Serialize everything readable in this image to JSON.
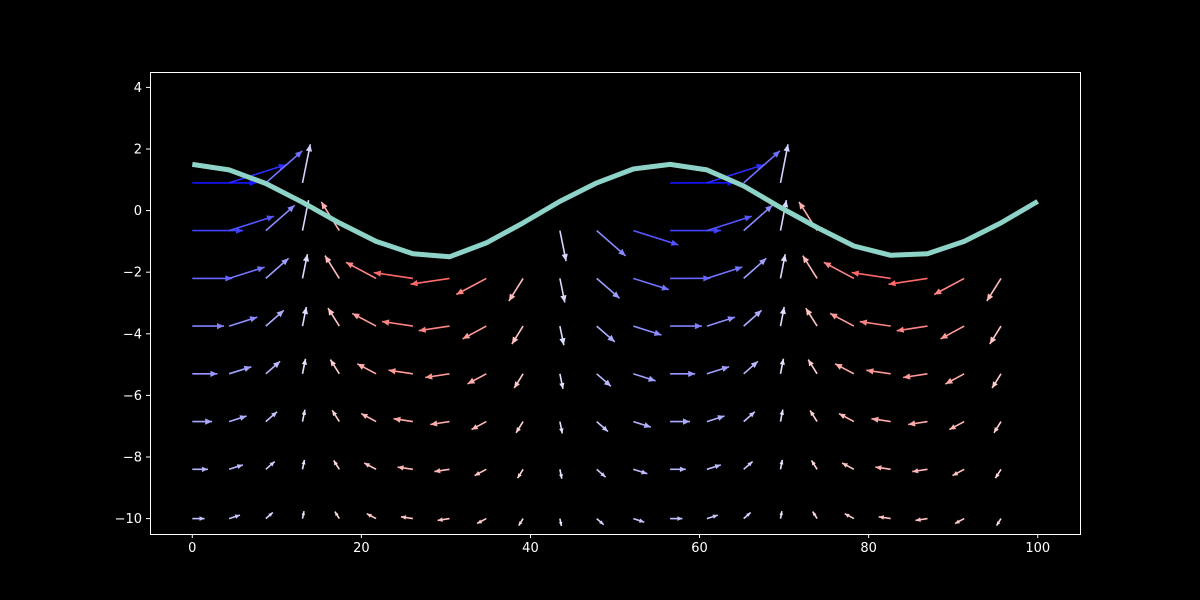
{
  "chart_data": {
    "type": "quiver",
    "title": "",
    "xlabel": "",
    "ylabel": "",
    "xlim": [
      -5,
      105
    ],
    "ylim": [
      -10.5,
      4.5
    ],
    "x_ticks": [
      "0",
      "20",
      "40",
      "60",
      "80",
      "100"
    ],
    "y_ticks": [
      "−10",
      "−8",
      "−6",
      "−4",
      "−2",
      "0",
      "2",
      "4"
    ],
    "x_tick_values": [
      0,
      20,
      40,
      60,
      80,
      100
    ],
    "y_tick_values": [
      -10,
      -8,
      -6,
      -4,
      -2,
      0,
      2,
      4
    ],
    "background": "#000000",
    "axis_color": "#ffffff",
    "surface_color": "#8dd3c7",
    "surface": {
      "x": [
        0,
        4.35,
        8.7,
        13.04,
        17.39,
        21.74,
        26.09,
        30.43,
        34.78,
        39.13,
        43.48,
        47.83,
        52.17,
        56.52,
        60.87,
        65.22,
        69.57,
        73.91,
        78.26,
        82.61,
        86.96,
        91.3,
        95.65,
        100
      ],
      "y": [
        1.5,
        1.32,
        0.88,
        0.27,
        -0.4,
        -1.0,
        -1.4,
        -1.5,
        -1.05,
        -0.4,
        0.3,
        0.9,
        1.35,
        1.5,
        1.32,
        0.8,
        0.1,
        -0.55,
        -1.15,
        -1.45,
        -1.4,
        -1.0,
        -0.4,
        0.3
      ]
    },
    "arrow_grid": {
      "x": [
        0,
        4.35,
        8.7,
        13.04,
        17.39,
        21.74,
        26.09,
        30.43,
        34.78,
        39.13,
        43.48,
        47.83,
        52.17,
        56.52,
        60.87,
        65.22,
        69.57,
        73.91,
        78.26,
        82.61,
        86.96,
        91.3,
        95.65
      ],
      "rows": [
        {
          "y": 0.9,
          "cols": [
            0,
            1,
            2,
            3,
            13,
            14,
            15,
            16
          ]
        },
        {
          "y": -0.65,
          "cols": [
            0,
            1,
            2,
            3,
            4,
            10,
            11,
            12,
            13,
            14,
            15,
            16,
            17
          ]
        },
        {
          "y": -2.2,
          "cols": "all"
        },
        {
          "y": -3.75,
          "cols": "all"
        },
        {
          "y": -5.3,
          "cols": "all"
        },
        {
          "y": -6.85,
          "cols": "all"
        },
        {
          "y": -8.4,
          "cols": "all"
        },
        {
          "y": -10.0,
          "cols": "all"
        }
      ],
      "surface_amplitude": 1.5,
      "wavelength": 56.5,
      "phase_x": 0,
      "decay_length": 6.6,
      "arrow_scale": 7.6,
      "colormap": "bwr (blue = rightward, red = leftward)"
    }
  }
}
